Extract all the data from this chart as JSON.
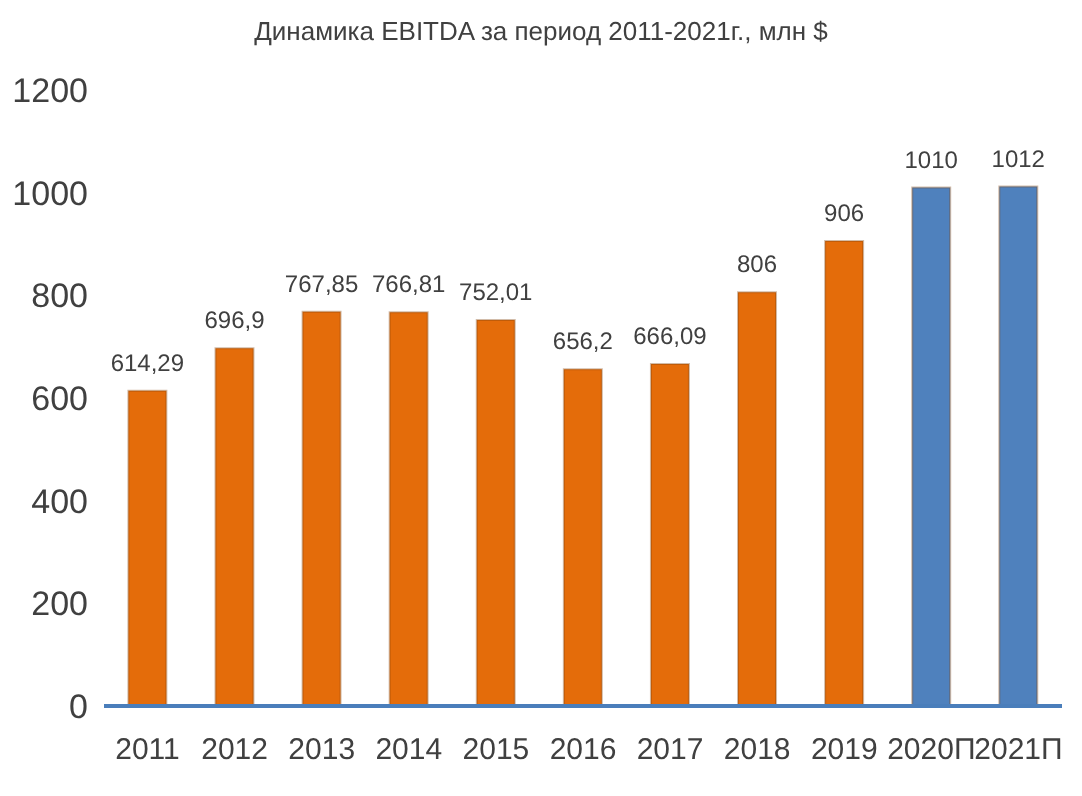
{
  "chart_data": {
    "type": "bar",
    "title": "Динамика EBITDA за период 2011-2021г.,  млн $",
    "categories": [
      "2011",
      "2012",
      "2013",
      "2014",
      "2015",
      "2016",
      "2017",
      "2018",
      "2019",
      "2020П",
      "2021П"
    ],
    "values": [
      614.29,
      696.9,
      767.85,
      766.81,
      752.01,
      656.2,
      666.09,
      806,
      906,
      1010,
      1012
    ],
    "value_labels": [
      "614,29",
      "696,9",
      "767,85",
      "766,81",
      "752,01",
      "656,2",
      "666,09",
      "806",
      "906",
      "1010",
      "1012"
    ],
    "colors": [
      "#e46c0a",
      "#e46c0a",
      "#e46c0a",
      "#e46c0a",
      "#e46c0a",
      "#e46c0a",
      "#e46c0a",
      "#e46c0a",
      "#e46c0a",
      "#4f81bd",
      "#4f81bd"
    ],
    "ylim": [
      0,
      1200
    ],
    "yticks": [
      0,
      200,
      400,
      600,
      800,
      1000,
      1200
    ],
    "grid": false,
    "legend": false
  }
}
